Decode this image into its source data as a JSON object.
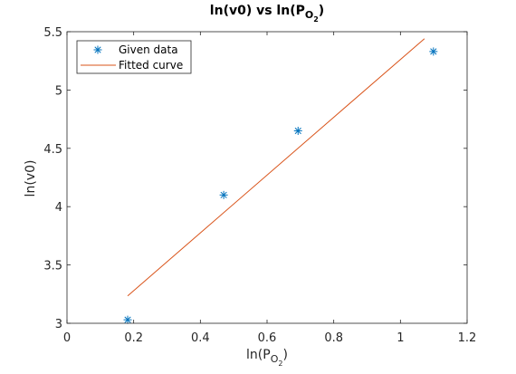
{
  "chart_data": {
    "type": "scatter",
    "title": {
      "main": "ln(v0) vs ln(P",
      "sub": "O",
      "subsub": "2",
      "tail": ")"
    },
    "xlabel": {
      "main": "ln(P",
      "sub": "O",
      "subsub": "2",
      "tail": ")"
    },
    "ylabel": "ln(v0)",
    "xlim": [
      0,
      1.2
    ],
    "ylim": [
      3,
      5.5
    ],
    "xticks": [
      0,
      0.2,
      0.4,
      0.6,
      0.8,
      1,
      1.2
    ],
    "xtick_labels": [
      "0",
      "0.2",
      "0.4",
      "0.6",
      "0.8",
      "1",
      "1.2"
    ],
    "yticks": [
      3,
      3.5,
      4,
      4.5,
      5,
      5.5
    ],
    "ytick_labels": [
      "3",
      "3.5",
      "4",
      "4.5",
      "5",
      "5.5"
    ],
    "legend_position": "top-left",
    "series": [
      {
        "name": "Given data",
        "kind": "scatter",
        "marker": "asterisk",
        "color": "#0072BD",
        "x": [
          0.182,
          0.47,
          0.693,
          1.099
        ],
        "y": [
          3.03,
          4.1,
          4.65,
          5.33
        ]
      },
      {
        "name": "Fitted curve",
        "kind": "line",
        "color": "#D95319",
        "x": [
          0.182,
          1.072
        ],
        "y": [
          3.235,
          5.44
        ]
      }
    ]
  }
}
